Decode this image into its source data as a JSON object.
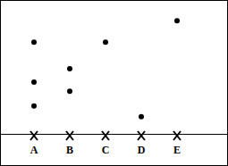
{
  "chart_data": {
    "type": "dot",
    "categories": [
      "A",
      "B",
      "C",
      "D",
      "E"
    ],
    "values": [
      [
        6.9,
        3.9,
        2.1
      ],
      [
        4.9,
        3.2
      ],
      [
        6.9
      ],
      [
        1.3
      ],
      [
        8.5
      ]
    ],
    "ylim": [
      0,
      10
    ],
    "marker": "circle",
    "color": "#000000",
    "tick_labels": "x"
  }
}
